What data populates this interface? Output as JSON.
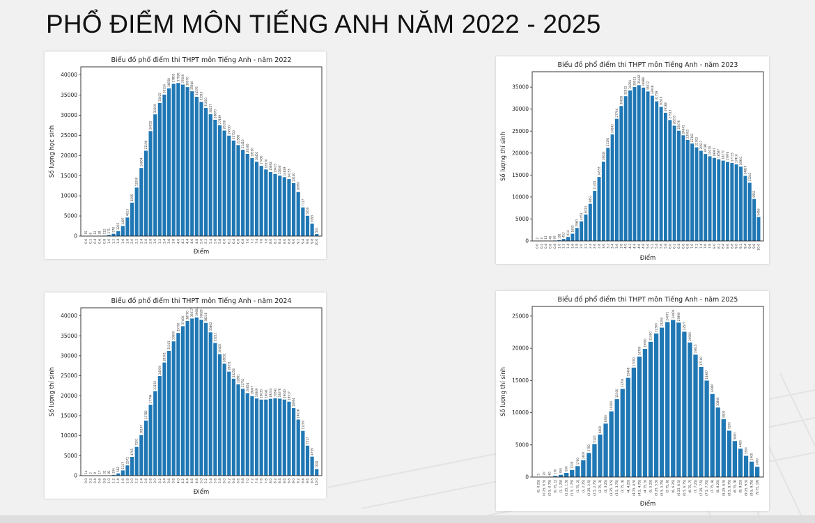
{
  "page": {
    "title": "PHỔ ĐIỂM MÔN TIẾNG ANH NĂM 2022 - 2025"
  },
  "chart_data": [
    {
      "type": "bar",
      "title": "Biểu đồ phổ điểm thi THPT môn Tiếng Anh - năm 2022",
      "xlabel": "Điểm",
      "ylabel": "Số lượng học sinh",
      "ylim": [
        0,
        42000
      ],
      "yticks": [
        0,
        5000,
        10000,
        15000,
        20000,
        25000,
        30000,
        35000,
        40000
      ],
      "color": "#1f77b4",
      "grid": false,
      "categories": [
        "0.0",
        "0.2",
        "0.4",
        "0.6",
        "0.8",
        "1.0",
        "1.2",
        "1.4",
        "1.6",
        "1.8",
        "2.0",
        "2.2",
        "2.4",
        "2.6",
        "2.8",
        "3.0",
        "3.2",
        "3.4",
        "3.6",
        "3.8",
        "4.0",
        "4.2",
        "4.4",
        "4.6",
        "4.8",
        "5.0",
        "5.2",
        "5.4",
        "5.6",
        "5.8",
        "6.0",
        "6.2",
        "6.4",
        "6.6",
        "6.8",
        "7.0",
        "7.2",
        "7.4",
        "7.6",
        "7.8",
        "8.0",
        "8.2",
        "8.4",
        "8.6",
        "8.8",
        "9.0",
        "9.2",
        "9.4",
        "9.6",
        "9.8",
        "10.0"
      ],
      "values": [
        15,
        6,
        12,
        38,
        112,
        271,
        578,
        1203,
        2497,
        4613,
        8295,
        12050,
        16904,
        21190,
        26052,
        30209,
        33025,
        35114,
        36658,
        37803,
        37990,
        37600,
        36970,
        35940,
        34576,
        33310,
        31810,
        30257,
        28870,
        27499,
        26190,
        24930,
        23710,
        22586,
        21416,
        20395,
        19350,
        18451,
        17430,
        16530,
        15892,
        15415,
        15000,
        14629,
        14153,
        13140,
        10950,
        7117,
        5050,
        3093,
        501
      ],
      "value_labels": [
        "15",
        "6",
        "12",
        "38",
        "112",
        "271",
        "578",
        "1203",
        "2497",
        "4613",
        "8295",
        "12050",
        "16904",
        "21190",
        "26052",
        "30209",
        "33025",
        "35114",
        "36658",
        "37803",
        "37990",
        "37600",
        "36970",
        "35940",
        "34576",
        "33310",
        "31810",
        "30257",
        "28870",
        "27499",
        "26190",
        "24930",
        "23710",
        "22586",
        "21416",
        "20395",
        "19350",
        "18451",
        "17430",
        "16530",
        "15892",
        "15415",
        "15000",
        "14629",
        "14153",
        "13140",
        "10950",
        "7117",
        "5050",
        "3093",
        "501"
      ]
    },
    {
      "type": "bar",
      "title": "Biểu đồ phổ điểm thi THPT môn Tiếng Anh - năm 2023",
      "xlabel": "Điểm",
      "ylabel": "Số lượng thí sinh",
      "ylim": [
        0,
        38500
      ],
      "yticks": [
        0,
        5000,
        10000,
        15000,
        20000,
        25000,
        30000,
        35000
      ],
      "color": "#1f77b4",
      "grid": false,
      "categories": [
        "0.0",
        "0.2",
        "0.4",
        "0.6",
        "0.8",
        "1.0",
        "1.2",
        "1.4",
        "1.6",
        "1.8",
        "2.0",
        "2.2",
        "2.4",
        "2.6",
        "2.8",
        "3.0",
        "3.2",
        "3.4",
        "3.6",
        "3.8",
        "4.0",
        "4.2",
        "4.4",
        "4.6",
        "4.8",
        "5.0",
        "5.2",
        "5.4",
        "5.6",
        "5.8",
        "6.0",
        "6.2",
        "6.4",
        "6.6",
        "6.8",
        "7.0",
        "7.2",
        "7.4",
        "7.6",
        "7.8",
        "8.0",
        "8.2",
        "8.4",
        "8.6",
        "8.8",
        "9.0",
        "9.2",
        "9.4",
        "9.6",
        "9.8",
        "10.0"
      ],
      "values": [
        2,
        4,
        13,
        40,
        97,
        191,
        453,
        914,
        1655,
        2960,
        4453,
        6013,
        8451,
        11401,
        14553,
        18043,
        21191,
        24243,
        27794,
        30695,
        32932,
        34254,
        35011,
        35442,
        34888,
        34012,
        33048,
        31759,
        30510,
        29168,
        27513,
        26233,
        25076,
        24041,
        23003,
        22162,
        21302,
        20517,
        19786,
        19270,
        18901,
        18587,
        18277,
        17976,
        17733,
        17416,
        16901,
        14820,
        13241,
        9553,
        5456
      ]
    },
    {
      "type": "bar",
      "title": "Biểu đồ phổ điểm thi THPT môn Tiếng Anh - năm 2024",
      "xlabel": "Điểm",
      "ylabel": "Số lượng thí sinh",
      "ylim": [
        0,
        42000
      ],
      "yticks": [
        0,
        5000,
        10000,
        15000,
        20000,
        25000,
        30000,
        35000,
        40000
      ],
      "color": "#1f77b4",
      "grid": false,
      "categories": [
        "0.0",
        "0.2",
        "0.4",
        "0.6",
        "0.8",
        "1.0",
        "1.2",
        "1.4",
        "1.6",
        "1.8",
        "2.0",
        "2.2",
        "2.4",
        "2.6",
        "2.8",
        "3.0",
        "3.2",
        "3.4",
        "3.6",
        "3.8",
        "4.0",
        "4.2",
        "4.4",
        "4.6",
        "4.8",
        "5.0",
        "5.2",
        "5.4",
        "5.6",
        "5.8",
        "6.0",
        "6.2",
        "6.4",
        "6.6",
        "6.8",
        "7.0",
        "7.2",
        "7.4",
        "7.6",
        "7.8",
        "8.0",
        "8.2",
        "8.4",
        "8.6",
        "8.8",
        "9.0",
        "9.2",
        "9.4",
        "9.6",
        "9.8",
        "10.0"
      ],
      "values": [
        14,
        2,
        8,
        17,
        32,
        82,
        204,
        562,
        1317,
        2572,
        4701,
        7201,
        10147,
        13782,
        17744,
        21150,
        24939,
        28301,
        31201,
        33600,
        35700,
        37400,
        38700,
        39317,
        39604,
        39028,
        38218,
        35862,
        33211,
        30402,
        28032,
        26031,
        24256,
        22861,
        21731,
        20654,
        19907,
        19309,
        19033,
        19041,
        19234,
        19342,
        19276,
        19040,
        18517,
        16904,
        14038,
        11209,
        7517,
        4759,
        1641
      ],
      "value_labels": [
        "14",
        "2",
        "8",
        "17",
        "32",
        "82",
        "204",
        "562",
        "1317",
        "2572",
        "4701",
        "7201",
        "10147",
        "13782",
        "17744",
        "21150",
        "24939",
        "28301",
        "31201",
        "33600",
        "35700",
        "37400",
        "38700",
        "39317",
        "39604",
        "39028",
        "38218",
        "35862",
        "33211",
        "30402",
        "28032",
        "26031",
        "24256",
        "22861",
        "21731",
        "20654",
        "19907",
        "19309",
        "19033",
        "19041",
        "19234",
        "19342",
        "19276",
        "19040",
        "18517",
        "16904",
        "14038",
        "11209",
        "7517",
        "4759",
        "1641"
      ]
    },
    {
      "type": "bar",
      "title": "Biểu đồ phổ điểm thi THPT môn Tiếng Anh - năm 2025",
      "xlabel": "Điểm",
      "ylabel": "Số lượng thí sinh",
      "ylim": [
        0,
        26500
      ],
      "yticks": [
        0,
        5000,
        10000,
        15000,
        20000,
        25000
      ],
      "color": "#1f77b4",
      "grid": false,
      "categories": [
        "(0, 0.25]",
        "(0.25, 0.5]",
        "(0.5, 0.75]",
        "(0.75, 1]",
        "(1, 1.25]",
        "(1.25, 1.5]",
        "(1.5, 1.75]",
        "(1.75, 2]",
        "(2, 2.25]",
        "(2.25, 2.5]",
        "(2.5, 2.75]",
        "(2.75, 3]",
        "(3, 3.25]",
        "(3.25, 3.5]",
        "(3.5, 3.75]",
        "(3.75, 4]",
        "(4, 4.25]",
        "(4.25, 4.5]",
        "(4.5, 4.75]",
        "(4.75, 5]",
        "(5, 5.25]",
        "(5.25, 5.5]",
        "(5.5, 5.75]",
        "(5.75, 6]",
        "(6, 6.25]",
        "(6.25, 6.5]",
        "(6.5, 6.75]",
        "(6.75, 7]",
        "(7, 7.25]",
        "(7.25, 7.5]",
        "(7.5, 7.75]",
        "(7.75, 8]",
        "(8, 8.25]",
        "(8.25, 8.5]",
        "(8.5, 8.75]",
        "(8.75, 9]",
        "(9, 9.25]",
        "(9.25, 9.5]",
        "(9.5, 9.75]",
        "(9.75, 10]"
      ],
      "values": [
        5,
        20,
        60,
        170,
        350,
        650,
        1100,
        1700,
        2600,
        3750,
        5120,
        6600,
        8300,
        10200,
        12100,
        13700,
        15408,
        17000,
        18700,
        19900,
        21000,
        22300,
        23200,
        24071,
        24400,
        23990,
        22577,
        20900,
        19015,
        17100,
        14987,
        12900,
        10800,
        9000,
        7200,
        5600,
        4400,
        3300,
        2400,
        1600
      ]
    }
  ]
}
